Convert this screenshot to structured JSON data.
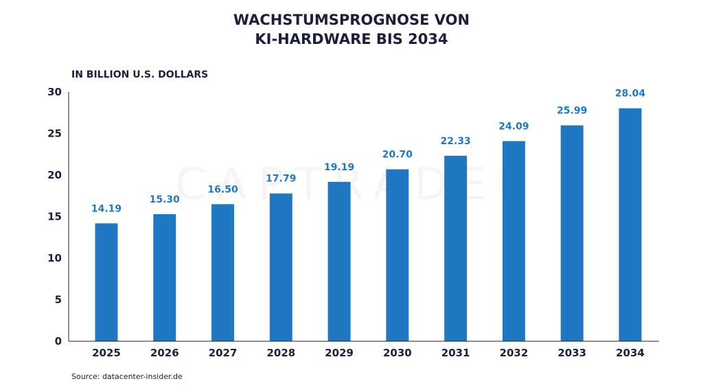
{
  "chart_data": {
    "type": "bar",
    "title": [
      "WACHSTUMSPROGNOSE VON",
      "KI-HARDWARE BIS 2034"
    ],
    "unit_label": "IN BILLION U.S. DOLLARS",
    "categories": [
      "2025",
      "2026",
      "2027",
      "2028",
      "2029",
      "2030",
      "2031",
      "2032",
      "2033",
      "2034"
    ],
    "values": [
      14.19,
      15.3,
      16.5,
      17.79,
      19.19,
      20.7,
      22.33,
      24.09,
      25.99,
      28.04
    ],
    "value_labels": [
      "14.19",
      "15.30",
      "16.50",
      "17.79",
      "19.19",
      "20.70",
      "22.33",
      "24.09",
      "25.99",
      "28.04"
    ],
    "ylim": [
      0,
      30
    ],
    "yticks": [
      0,
      5,
      10,
      15,
      20,
      25,
      30
    ],
    "grid": false,
    "bar_color": "#1f78c1",
    "value_label_color": "#1f78c1",
    "text_color": "#1c1f3a",
    "source": "Source: datacenter-insider.de",
    "watermark": "CAPTRADER"
  }
}
